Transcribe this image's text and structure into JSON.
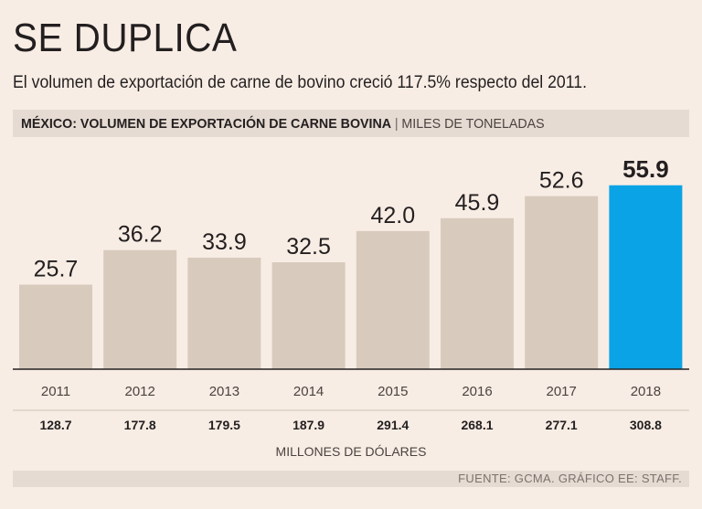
{
  "headline": "SE DUPLICA",
  "subtitle": "El volumen de exportación de carne de bovino creció 117.5% respecto del 2011.",
  "chart_title": "MÉXICO: VOLUMEN DE EXPORTACIÓN DE CARNE BOVINA",
  "chart_title_separator": "|",
  "chart_unit": "MILES DE TONELADAS",
  "chart_data": {
    "type": "bar",
    "categories": [
      "2011",
      "2012",
      "2013",
      "2014",
      "2015",
      "2016",
      "2017",
      "2018"
    ],
    "values": [
      25.7,
      36.2,
      33.9,
      32.5,
      42.0,
      45.9,
      52.6,
      55.9
    ],
    "value_labels": [
      "25.7",
      "36.2",
      "33.9",
      "32.5",
      "42.0",
      "45.9",
      "52.6",
      "55.9"
    ],
    "secondary_values": [
      "128.7",
      "177.8",
      "179.5",
      "187.9",
      "291.4",
      "268.1",
      "277.1",
      "308.8"
    ],
    "secondary_label": "MILLONES DE DÓLARES",
    "ylim": [
      0,
      60
    ],
    "highlight_index": 7,
    "colors": {
      "bar": "#d8cabd",
      "highlight": "#0aa3e6",
      "baseline": "#231f20",
      "text": "#231f20",
      "muted": "#4a4340"
    },
    "grid": false,
    "legend": "none"
  },
  "source": "FUENTE: GCMA. GRÁFICO EE: STAFF."
}
